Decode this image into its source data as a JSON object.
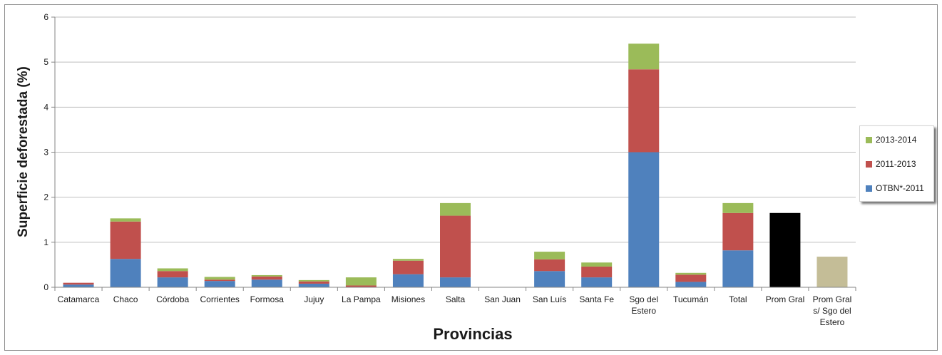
{
  "chart_data": {
    "type": "bar",
    "stacked": true,
    "title": "",
    "xlabel": "Provincias",
    "ylabel": "Superficie  deforestada  (%)",
    "ylim": [
      0,
      6
    ],
    "yticks": [
      "0",
      "1",
      "2",
      "3",
      "4",
      "5",
      "6"
    ],
    "grid": true,
    "legend_position": "right",
    "categories": [
      [
        "Catamarca"
      ],
      [
        "Chaco"
      ],
      [
        "Córdoba"
      ],
      [
        "Corrientes"
      ],
      [
        "Formosa"
      ],
      [
        "Jujuy"
      ],
      [
        "La Pampa"
      ],
      [
        "Misiones"
      ],
      [
        "Salta"
      ],
      [
        "San Juan"
      ],
      [
        "San Luís"
      ],
      [
        "Santa Fe"
      ],
      [
        "Sgo del",
        "Estero"
      ],
      [
        "Tucumán"
      ],
      [
        "Total"
      ],
      [
        "Prom Gral"
      ],
      [
        "Prom Gral",
        "s/ Sgo del",
        "Estero"
      ]
    ],
    "series": [
      {
        "name": "OTBN*-2011",
        "color": "#4f81bd",
        "values": [
          0.06,
          0.63,
          0.22,
          0.14,
          0.17,
          0.08,
          0.0,
          0.29,
          0.22,
          0.0,
          0.36,
          0.22,
          3.0,
          0.12,
          0.82,
          0,
          0
        ]
      },
      {
        "name": "2011-2013",
        "color": "#c0504d",
        "values": [
          0.04,
          0.83,
          0.14,
          0.03,
          0.07,
          0.05,
          0.04,
          0.3,
          1.37,
          0.0,
          0.26,
          0.24,
          1.84,
          0.16,
          0.83,
          0,
          0
        ]
      },
      {
        "name": "2013-2014",
        "color": "#9bbb59",
        "values": [
          0.0,
          0.07,
          0.06,
          0.06,
          0.03,
          0.03,
          0.18,
          0.04,
          0.28,
          0.0,
          0.17,
          0.09,
          0.57,
          0.04,
          0.22,
          0,
          0
        ]
      }
    ],
    "extra_bars": [
      {
        "index": 15,
        "value": 1.65,
        "color": "#000000"
      },
      {
        "index": 16,
        "value": 0.68,
        "color": "#c4bd97"
      }
    ],
    "gridline_color": "#bfbfbf",
    "axis_color": "#868686"
  }
}
